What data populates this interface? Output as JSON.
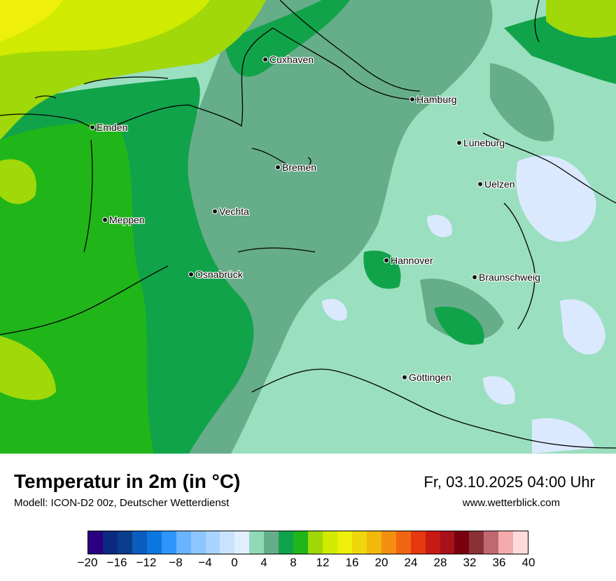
{
  "map": {
    "cities": [
      {
        "name": "Cuxhaven",
        "key": "cuxhaven"
      },
      {
        "name": "Hamburg",
        "key": "hamburg"
      },
      {
        "name": "Emden",
        "key": "emden"
      },
      {
        "name": "Lüneburg",
        "key": "lueneburg"
      },
      {
        "name": "Bremen",
        "key": "bremen"
      },
      {
        "name": "Uelzen",
        "key": "uelzen"
      },
      {
        "name": "Vechta",
        "key": "vechta"
      },
      {
        "name": "Meppen",
        "key": "meppen"
      },
      {
        "name": "Hannover",
        "key": "hannover"
      },
      {
        "name": "Osnabrück",
        "key": "osnabrueck"
      },
      {
        "name": "Braunschweig",
        "key": "braunschweig"
      },
      {
        "name": "Göttingen",
        "key": "goettingen"
      }
    ]
  },
  "footer": {
    "title": "Temperatur in 2m (in °C)",
    "subtitle": "Modell: ICON-D2 00z, Deutscher Wetterdienst",
    "datetime": "Fr, 03.10.2025 04:00 Uhr",
    "website": "www.wetterblick.com"
  },
  "legend": {
    "colors": [
      "#2a0080",
      "#0b2a80",
      "#0a3d8c",
      "#0a5cbf",
      "#0a78e0",
      "#2e95ff",
      "#6ab4ff",
      "#8cc5ff",
      "#a8d4ff",
      "#c9e3ff",
      "#e0eeff",
      "#8ed9b8",
      "#66ad8a",
      "#0ea24a",
      "#20b619",
      "#a0d809",
      "#d0ea00",
      "#eef00a",
      "#efd60b",
      "#f2b80b",
      "#f48e10",
      "#f26512",
      "#e5380e",
      "#c81a14",
      "#a8101a",
      "#7a0010",
      "#8c3038",
      "#c06870",
      "#f2aaaa",
      "#ffdada"
    ],
    "ticks": [
      "−20",
      "−16",
      "−12",
      "−8",
      "−4",
      "0",
      "4",
      "8",
      "12",
      "16",
      "20",
      "24",
      "28",
      "32",
      "36",
      "40"
    ]
  }
}
